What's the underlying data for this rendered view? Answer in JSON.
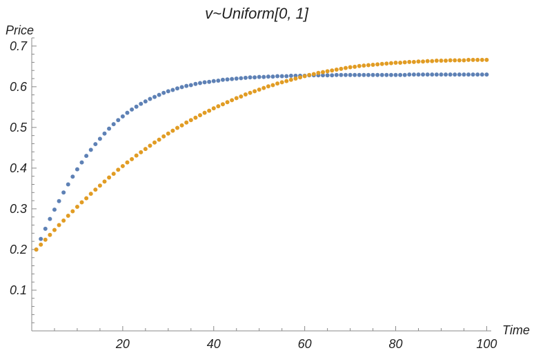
{
  "chart_data": {
    "type": "scatter",
    "title": "v~Uniform[0, 1]",
    "xlabel": "Time",
    "ylabel": "Price",
    "xlim": [
      0,
      101
    ],
    "ylim": [
      0,
      0.72
    ],
    "x_ticks": [
      20,
      40,
      60,
      80,
      100
    ],
    "y_ticks": [
      0.1,
      0.2,
      0.3,
      0.4,
      0.5,
      0.6,
      0.7
    ],
    "x_tick_labels": [
      "20",
      "40",
      "60",
      "80",
      "100"
    ],
    "y_tick_labels": [
      "0.1",
      "0.2",
      "0.3",
      "0.4",
      "0.5",
      "0.6",
      "0.7"
    ],
    "x_minor_step": 5,
    "y_minor_step": 0.02,
    "grid": false,
    "legend": "none",
    "series": [
      {
        "color": "#5E81B5",
        "x": [
          1,
          2,
          3,
          4,
          5,
          6,
          7,
          8,
          9,
          10,
          11,
          12,
          13,
          14,
          15,
          16,
          17,
          18,
          19,
          20,
          21,
          22,
          23,
          24,
          25,
          26,
          27,
          28,
          29,
          30,
          31,
          32,
          33,
          34,
          35,
          36,
          37,
          38,
          39,
          40,
          41,
          42,
          43,
          44,
          45,
          46,
          47,
          48,
          49,
          50,
          51,
          52,
          53,
          54,
          55,
          56,
          57,
          58,
          59,
          60,
          61,
          62,
          63,
          64,
          65,
          66,
          67,
          68,
          69,
          70,
          71,
          72,
          73,
          74,
          75,
          76,
          77,
          78,
          79,
          80,
          81,
          82,
          83,
          84,
          85,
          86,
          87,
          88,
          89,
          90,
          91,
          92,
          93,
          94,
          95,
          96,
          97,
          98,
          99,
          100
        ],
        "y": [
          0.2,
          0.226,
          0.251,
          0.275,
          0.298,
          0.319,
          0.34,
          0.36,
          0.379,
          0.397,
          0.414,
          0.43,
          0.445,
          0.459,
          0.472,
          0.485,
          0.497,
          0.508,
          0.518,
          0.527,
          0.536,
          0.544,
          0.551,
          0.558,
          0.564,
          0.57,
          0.575,
          0.58,
          0.585,
          0.589,
          0.592,
          0.596,
          0.599,
          0.602,
          0.604,
          0.607,
          0.609,
          0.611,
          0.612,
          0.614,
          0.615,
          0.617,
          0.618,
          0.619,
          0.62,
          0.621,
          0.622,
          0.623,
          0.623,
          0.624,
          0.624,
          0.625,
          0.625,
          0.626,
          0.626,
          0.626,
          0.627,
          0.627,
          0.627,
          0.627,
          0.628,
          0.628,
          0.628,
          0.628,
          0.628,
          0.628,
          0.629,
          0.629,
          0.629,
          0.629,
          0.629,
          0.629,
          0.629,
          0.629,
          0.629,
          0.629,
          0.629,
          0.629,
          0.629,
          0.629,
          0.629,
          0.629,
          0.63,
          0.63,
          0.63,
          0.63,
          0.63,
          0.63,
          0.63,
          0.63,
          0.63,
          0.63,
          0.63,
          0.63,
          0.63,
          0.63,
          0.63,
          0.63,
          0.63,
          0.63
        ]
      },
      {
        "color": "#E19C24",
        "x": [
          1,
          2,
          3,
          4,
          5,
          6,
          7,
          8,
          9,
          10,
          11,
          12,
          13,
          14,
          15,
          16,
          17,
          18,
          19,
          20,
          21,
          22,
          23,
          24,
          25,
          26,
          27,
          28,
          29,
          30,
          31,
          32,
          33,
          34,
          35,
          36,
          37,
          38,
          39,
          40,
          41,
          42,
          43,
          44,
          45,
          46,
          47,
          48,
          49,
          50,
          51,
          52,
          53,
          54,
          55,
          56,
          57,
          58,
          59,
          60,
          61,
          62,
          63,
          64,
          65,
          66,
          67,
          68,
          69,
          70,
          71,
          72,
          73,
          74,
          75,
          76,
          77,
          78,
          79,
          80,
          81,
          82,
          83,
          84,
          85,
          86,
          87,
          88,
          89,
          90,
          91,
          92,
          93,
          94,
          95,
          96,
          97,
          98,
          99,
          100
        ],
        "y": [
          0.2,
          0.212,
          0.224,
          0.236,
          0.248,
          0.26,
          0.271,
          0.283,
          0.294,
          0.305,
          0.316,
          0.326,
          0.337,
          0.347,
          0.357,
          0.367,
          0.377,
          0.386,
          0.396,
          0.405,
          0.414,
          0.422,
          0.431,
          0.439,
          0.447,
          0.455,
          0.463,
          0.47,
          0.478,
          0.485,
          0.492,
          0.499,
          0.505,
          0.512,
          0.518,
          0.524,
          0.53,
          0.536,
          0.541,
          0.547,
          0.552,
          0.557,
          0.562,
          0.567,
          0.572,
          0.576,
          0.581,
          0.585,
          0.589,
          0.593,
          0.597,
          0.601,
          0.604,
          0.608,
          0.611,
          0.614,
          0.617,
          0.62,
          0.623,
          0.626,
          0.629,
          0.631,
          0.634,
          0.636,
          0.638,
          0.64,
          0.642,
          0.644,
          0.646,
          0.648,
          0.649,
          0.651,
          0.652,
          0.653,
          0.654,
          0.655,
          0.656,
          0.657,
          0.658,
          0.659,
          0.659,
          0.66,
          0.661,
          0.661,
          0.662,
          0.662,
          0.663,
          0.663,
          0.664,
          0.664,
          0.664,
          0.665,
          0.665,
          0.665,
          0.665,
          0.666,
          0.666,
          0.666,
          0.666,
          0.666
        ]
      }
    ]
  }
}
